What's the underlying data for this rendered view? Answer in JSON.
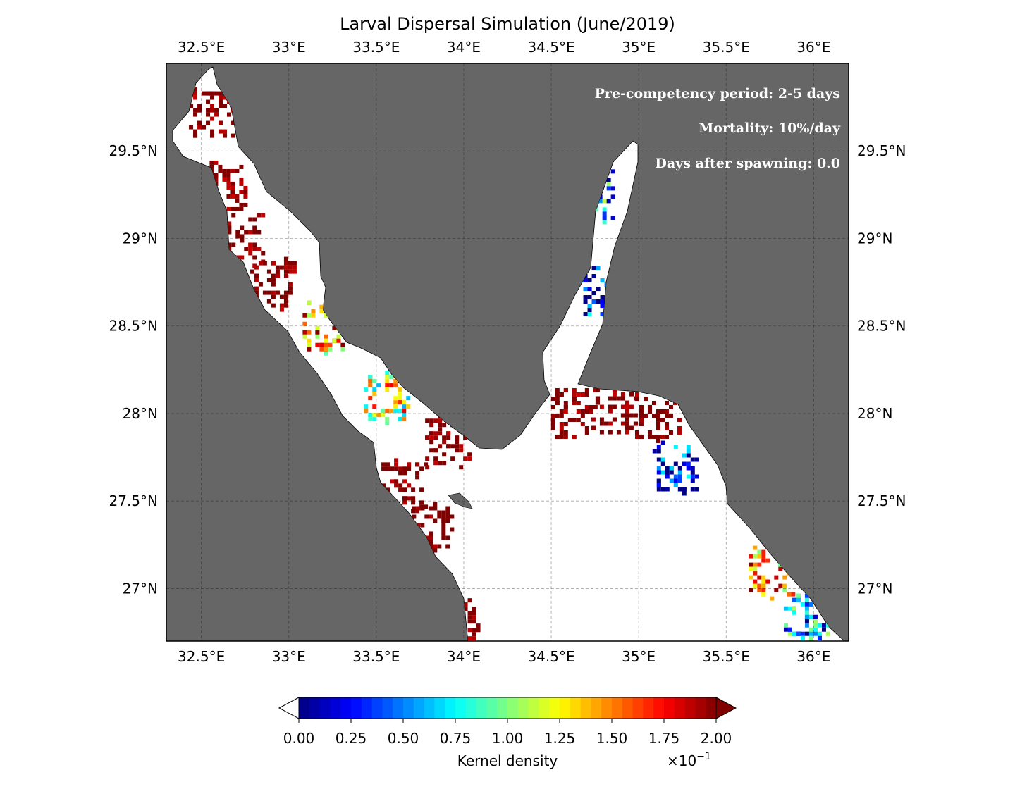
{
  "chart_data": {
    "type": "heatmap",
    "title": "Larval Dispersal Simulation (June/2019)",
    "lon_range": [
      32.3,
      36.2
    ],
    "lat_range": [
      26.7,
      30.0
    ],
    "lon_ticks": [
      32.5,
      33.0,
      33.5,
      34.0,
      34.5,
      35.0,
      35.5,
      36.0
    ],
    "lat_ticks": [
      27.0,
      27.5,
      28.0,
      28.5,
      29.0,
      29.5
    ],
    "lon_tick_labels": [
      "32.5°E",
      "33°E",
      "33.5°E",
      "34°E",
      "34.5°E",
      "35°E",
      "35.5°E",
      "36°E"
    ],
    "lat_tick_labels": [
      "27°N",
      "27.5°N",
      "28°N",
      "28.5°N",
      "29°N",
      "29.5°N"
    ],
    "grid": true,
    "land_color": "#666666",
    "water_color": "#ffffff",
    "annotations": [
      "Pre-competency period: 2-5 days",
      "Mortality: 10%/day",
      "Days after spawning: 0.0"
    ],
    "colorbar": {
      "label": "Kernel density",
      "multiplier_base": "×10",
      "multiplier_exp": "−1",
      "range": [
        0.0,
        2.0
      ],
      "ticks": [
        0.0,
        0.25,
        0.5,
        0.75,
        1.0,
        1.25,
        1.5,
        1.75,
        2.0
      ],
      "tick_labels": [
        "0.00",
        "0.25",
        "0.50",
        "0.75",
        "1.00",
        "1.25",
        "1.50",
        "1.75",
        "2.00"
      ],
      "colormap": "jet",
      "extend": "both"
    },
    "density_clusters": [
      {
        "lon": 32.55,
        "lat": 29.72,
        "value": 2.0
      },
      {
        "lon": 32.62,
        "lat": 29.3,
        "value": 2.0
      },
      {
        "lon": 32.72,
        "lat": 29.0,
        "value": 2.0
      },
      {
        "lon": 32.9,
        "lat": 28.75,
        "value": 2.0
      },
      {
        "lon": 33.2,
        "lat": 28.5,
        "value": 1.5
      },
      {
        "lon": 33.55,
        "lat": 28.1,
        "value": 1.2
      },
      {
        "lon": 33.9,
        "lat": 27.85,
        "value": 2.0
      },
      {
        "lon": 33.65,
        "lat": 27.6,
        "value": 2.0
      },
      {
        "lon": 33.8,
        "lat": 27.35,
        "value": 2.0
      },
      {
        "lon": 34.62,
        "lat": 28.0,
        "value": 2.0
      },
      {
        "lon": 34.85,
        "lat": 28.05,
        "value": 2.0
      },
      {
        "lon": 35.1,
        "lat": 28.0,
        "value": 2.0
      },
      {
        "lon": 35.2,
        "lat": 27.7,
        "value": 0.2
      },
      {
        "lon": 35.75,
        "lat": 27.1,
        "value": 1.5
      },
      {
        "lon": 35.95,
        "lat": 26.85,
        "value": 0.5
      },
      {
        "lon": 34.72,
        "lat": 29.25,
        "value": 0.6
      },
      {
        "lon": 34.78,
        "lat": 28.7,
        "value": 0.2
      },
      {
        "lon": 33.95,
        "lat": 26.8,
        "value": 2.0
      }
    ]
  }
}
